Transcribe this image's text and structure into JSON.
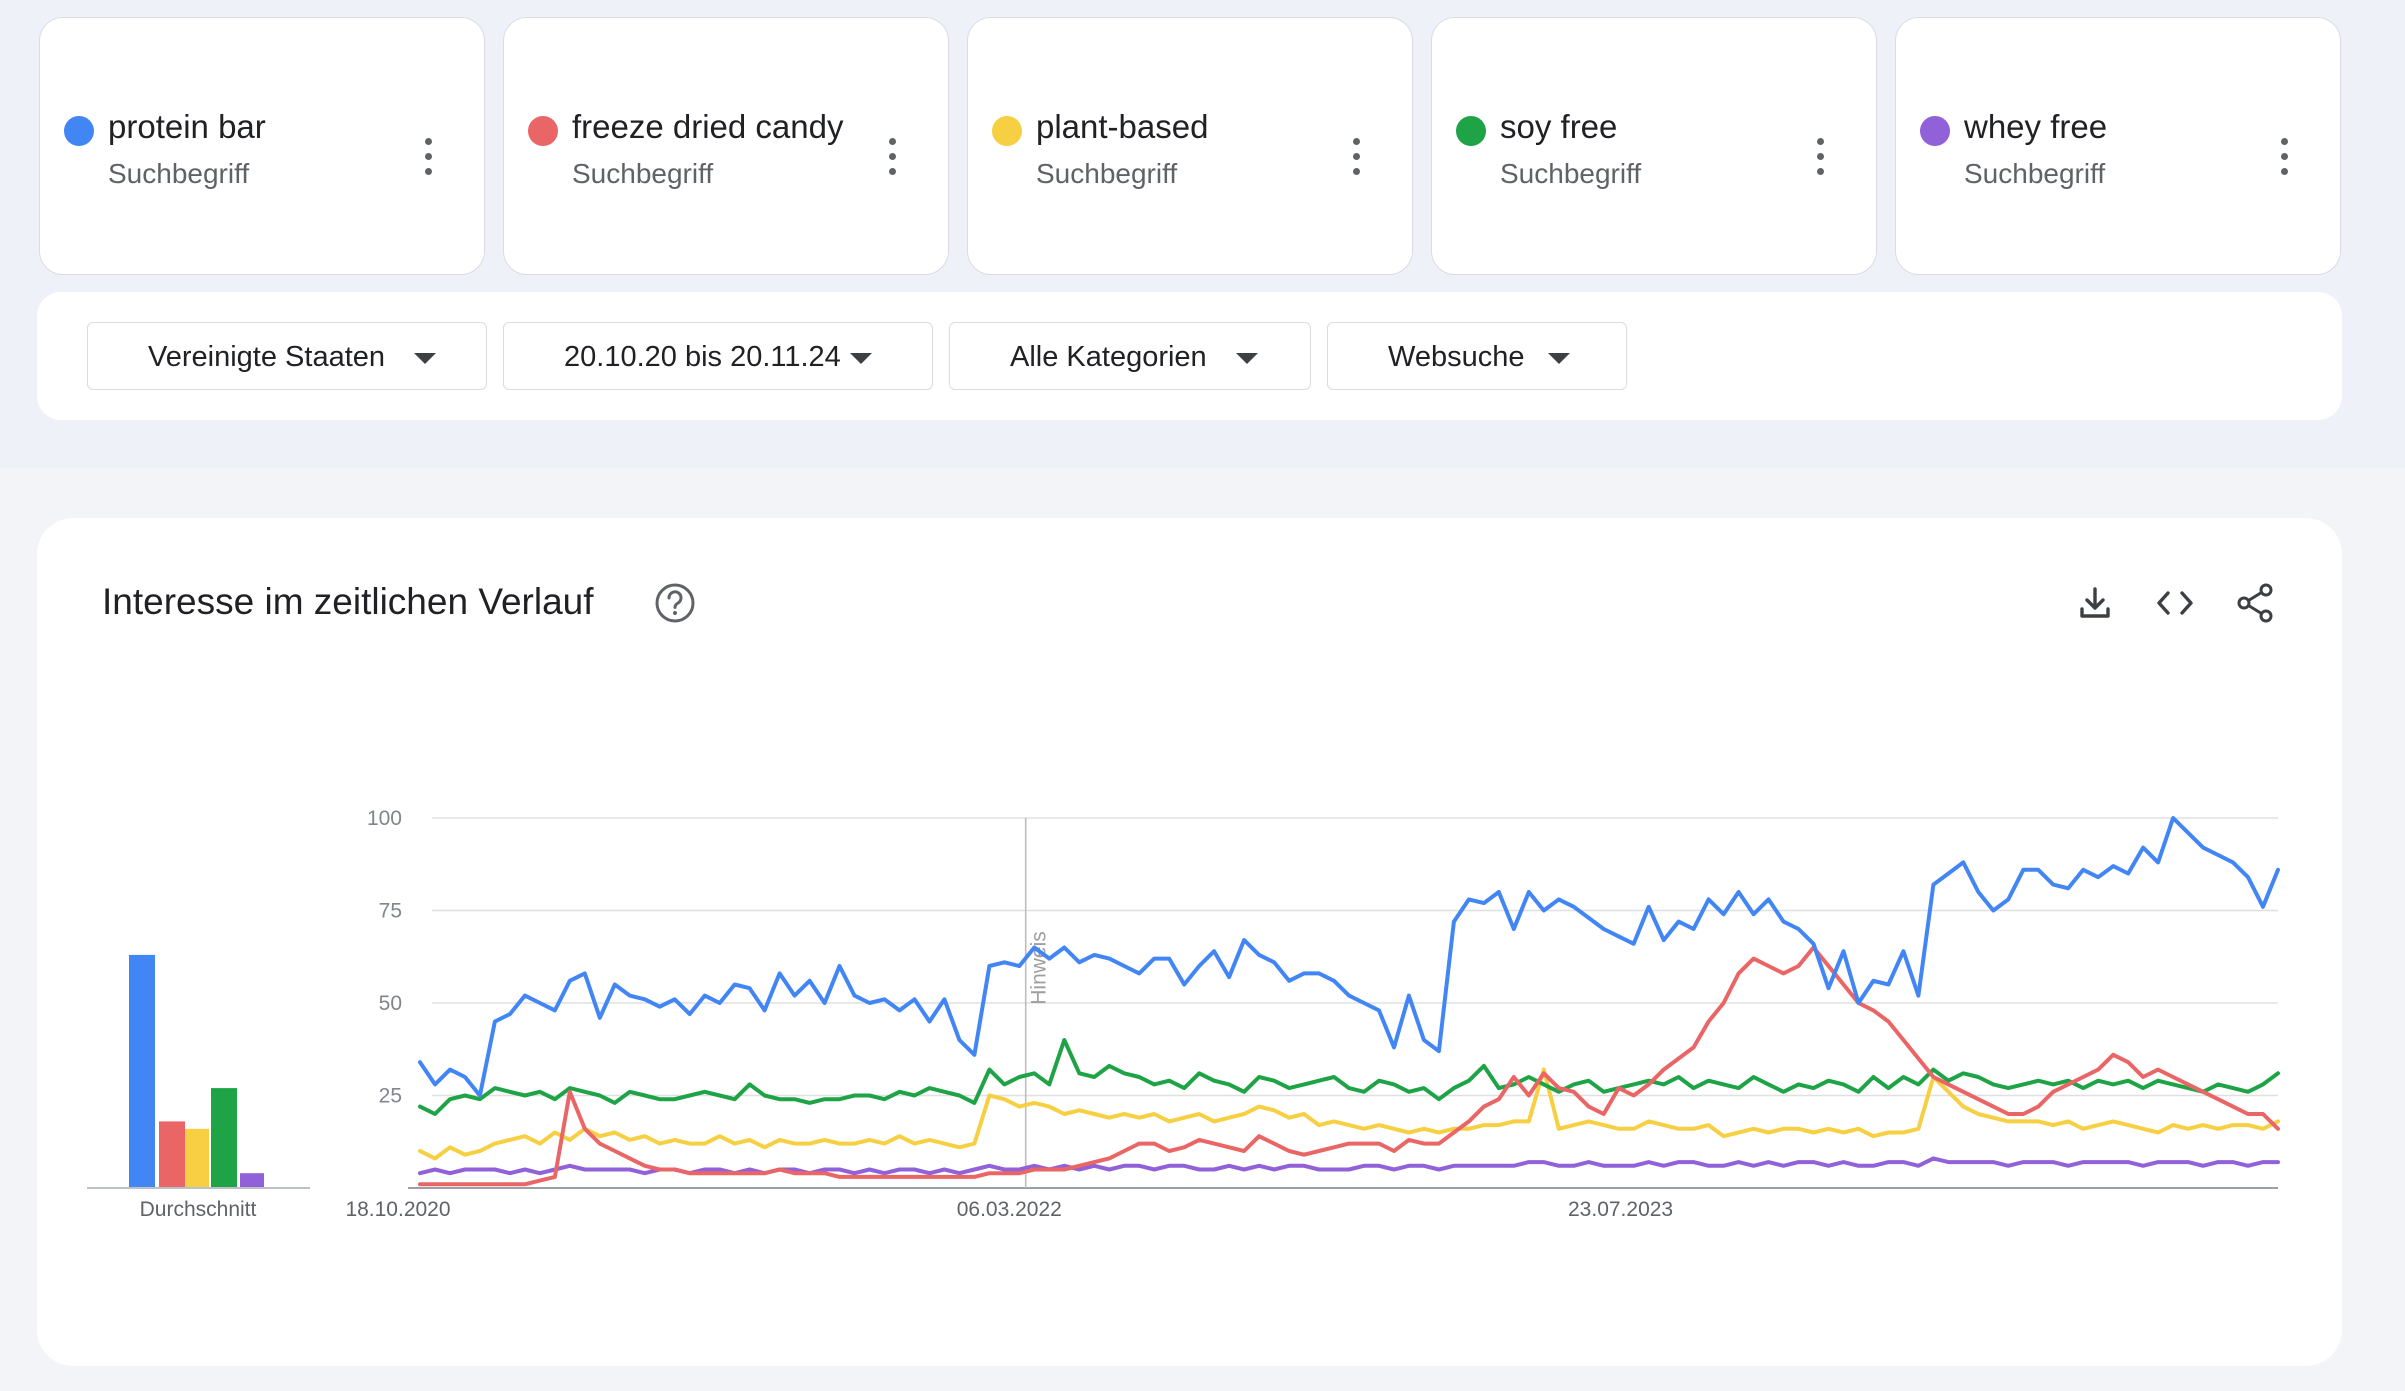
{
  "terms": [
    {
      "name": "protein bar",
      "type": "Suchbegriff",
      "color": "#4285f4"
    },
    {
      "name": "freeze dried candy",
      "type": "Suchbegriff",
      "color": "#ea6666"
    },
    {
      "name": "plant-based",
      "type": "Suchbegriff",
      "color": "#f6cf42"
    },
    {
      "name": "soy free",
      "type": "Suchbegriff",
      "color": "#1ea446"
    },
    {
      "name": "whey free",
      "type": "Suchbegriff",
      "color": "#9061d8"
    }
  ],
  "filters": {
    "region": "Vereinigte Staaten",
    "date_range": "20.10.20 bis 20.11.24",
    "category": "Alle Kategorien",
    "search_type": "Websuche"
  },
  "panel": {
    "title": "Interesse im zeitlichen Verlauf",
    "help_icon": "help-circle-icon",
    "tools": [
      "download-icon",
      "embed-code-icon",
      "share-icon"
    ]
  },
  "chart_data": {
    "type": "line",
    "y_ticks": [
      "100",
      "75",
      "50",
      "25"
    ],
    "ylim": [
      0,
      100
    ],
    "x_tick_labels": [
      "18.10.2020",
      "06.03.2022",
      "23.07.2023"
    ],
    "note_label": "Hinweis",
    "average_label": "Durchschnitt",
    "averages": [
      63,
      18,
      16,
      27,
      4
    ],
    "series": [
      {
        "name": "protein bar",
        "color": "#4285f4",
        "values": [
          34,
          28,
          32,
          30,
          25,
          45,
          47,
          52,
          50,
          48,
          56,
          58,
          46,
          55,
          52,
          51,
          49,
          51,
          47,
          52,
          50,
          55,
          54,
          48,
          58,
          52,
          56,
          50,
          60,
          52,
          50,
          51,
          48,
          51,
          45,
          51,
          40,
          36,
          60,
          61,
          60,
          65,
          62,
          65,
          61,
          63,
          62,
          60,
          58,
          62,
          62,
          55,
          60,
          64,
          57,
          67,
          63,
          61,
          56,
          58,
          58,
          56,
          52,
          50,
          48,
          38,
          52,
          40,
          37,
          72,
          78,
          77,
          80,
          70,
          80,
          75,
          78,
          76,
          73,
          70,
          68,
          66,
          76,
          67,
          72,
          70,
          78,
          74,
          80,
          74,
          78,
          72,
          70,
          66,
          54,
          64,
          50,
          56,
          55,
          64,
          52,
          82,
          85,
          88,
          80,
          75,
          78,
          86,
          86,
          82,
          81,
          86,
          84,
          87,
          85,
          92,
          88,
          100,
          96,
          92,
          90,
          88,
          84,
          76,
          86
        ]
      },
      {
        "name": "freeze dried candy",
        "color": "#ea6666",
        "values": [
          1,
          1,
          1,
          1,
          1,
          1,
          1,
          1,
          2,
          3,
          26,
          16,
          12,
          10,
          8,
          6,
          5,
          5,
          4,
          4,
          4,
          4,
          4,
          4,
          5,
          4,
          4,
          4,
          3,
          3,
          3,
          3,
          3,
          3,
          3,
          3,
          3,
          3,
          4,
          4,
          4,
          5,
          5,
          5,
          6,
          7,
          8,
          10,
          12,
          12,
          10,
          11,
          13,
          12,
          11,
          10,
          14,
          12,
          10,
          9,
          10,
          11,
          12,
          12,
          12,
          10,
          13,
          12,
          12,
          15,
          18,
          22,
          24,
          30,
          25,
          31,
          27,
          26,
          22,
          20,
          27,
          25,
          28,
          32,
          35,
          38,
          45,
          50,
          58,
          62,
          60,
          58,
          60,
          65,
          60,
          55,
          50,
          48,
          45,
          40,
          35,
          30,
          28,
          26,
          24,
          22,
          20,
          20,
          22,
          26,
          28,
          30,
          32,
          36,
          34,
          30,
          32,
          30,
          28,
          26,
          24,
          22,
          20,
          20,
          16
        ]
      },
      {
        "name": "plant-based",
        "color": "#f6cf42",
        "values": [
          10,
          8,
          11,
          9,
          10,
          12,
          13,
          14,
          12,
          15,
          13,
          16,
          14,
          15,
          13,
          14,
          12,
          13,
          12,
          12,
          14,
          12,
          13,
          11,
          13,
          12,
          12,
          13,
          12,
          12,
          13,
          12,
          14,
          12,
          13,
          12,
          11,
          12,
          25,
          24,
          22,
          23,
          22,
          20,
          21,
          20,
          19,
          20,
          19,
          20,
          18,
          19,
          20,
          18,
          19,
          20,
          22,
          21,
          19,
          20,
          17,
          18,
          17,
          16,
          17,
          16,
          15,
          16,
          15,
          16,
          16,
          17,
          17,
          18,
          18,
          32,
          16,
          17,
          18,
          17,
          16,
          16,
          18,
          17,
          16,
          16,
          17,
          14,
          15,
          16,
          15,
          16,
          16,
          15,
          16,
          15,
          16,
          14,
          15,
          15,
          16,
          30,
          26,
          22,
          20,
          19,
          18,
          18,
          18,
          17,
          18,
          16,
          17,
          18,
          17,
          16,
          15,
          17,
          16,
          17,
          16,
          17,
          17,
          16,
          18
        ]
      },
      {
        "name": "soy free",
        "color": "#1ea446",
        "values": [
          22,
          20,
          24,
          25,
          24,
          27,
          26,
          25,
          26,
          24,
          27,
          26,
          25,
          23,
          26,
          25,
          24,
          24,
          25,
          26,
          25,
          24,
          28,
          25,
          24,
          24,
          23,
          24,
          24,
          25,
          25,
          24,
          26,
          25,
          27,
          26,
          25,
          23,
          32,
          28,
          30,
          31,
          28,
          40,
          31,
          30,
          33,
          31,
          30,
          28,
          29,
          27,
          31,
          29,
          28,
          26,
          30,
          29,
          27,
          28,
          29,
          30,
          27,
          26,
          29,
          28,
          26,
          27,
          24,
          27,
          29,
          33,
          27,
          28,
          30,
          28,
          26,
          28,
          29,
          26,
          27,
          28,
          29,
          28,
          30,
          27,
          29,
          28,
          27,
          30,
          28,
          26,
          28,
          27,
          29,
          28,
          26,
          30,
          27,
          30,
          28,
          32,
          29,
          31,
          30,
          28,
          27,
          28,
          29,
          28,
          29,
          27,
          29,
          28,
          29,
          27,
          29,
          28,
          27,
          26,
          28,
          27,
          26,
          28,
          31
        ]
      },
      {
        "name": "whey free",
        "color": "#9061d8",
        "values": [
          4,
          5,
          4,
          5,
          5,
          5,
          4,
          5,
          4,
          5,
          6,
          5,
          5,
          5,
          5,
          4,
          5,
          5,
          4,
          5,
          5,
          4,
          5,
          4,
          5,
          5,
          4,
          5,
          5,
          4,
          5,
          4,
          5,
          5,
          4,
          5,
          4,
          5,
          6,
          5,
          5,
          6,
          5,
          6,
          5,
          6,
          5,
          6,
          6,
          5,
          6,
          6,
          5,
          5,
          6,
          5,
          6,
          5,
          6,
          6,
          5,
          5,
          5,
          6,
          6,
          5,
          6,
          6,
          5,
          6,
          6,
          6,
          6,
          6,
          7,
          7,
          6,
          6,
          7,
          6,
          6,
          6,
          7,
          6,
          7,
          7,
          6,
          6,
          7,
          6,
          7,
          6,
          7,
          7,
          6,
          7,
          6,
          6,
          7,
          7,
          6,
          8,
          7,
          7,
          7,
          7,
          6,
          7,
          7,
          7,
          6,
          7,
          7,
          7,
          7,
          6,
          7,
          7,
          7,
          6,
          7,
          7,
          6,
          7,
          7
        ]
      }
    ]
  }
}
